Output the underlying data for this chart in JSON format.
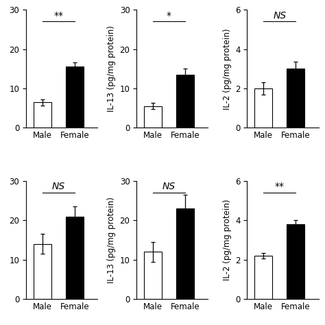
{
  "rows": [
    {
      "panels": [
        {
          "ylabel": "",
          "ylim": [
            0,
            30
          ],
          "yticks": [
            0,
            10,
            20,
            30
          ],
          "categories": [
            "Male",
            "Female"
          ],
          "values": [
            6.5,
            15.5
          ],
          "errors": [
            0.8,
            1.2
          ],
          "colors": [
            "white",
            "black"
          ],
          "significance": "**",
          "sig_style": "normal"
        },
        {
          "ylabel": "IL-13 (pg/mg protein)",
          "ylim": [
            0,
            30
          ],
          "yticks": [
            0,
            10,
            20,
            30
          ],
          "categories": [
            "Male",
            "Female"
          ],
          "values": [
            5.5,
            13.5
          ],
          "errors": [
            0.8,
            1.5
          ],
          "colors": [
            "white",
            "black"
          ],
          "significance": "*",
          "sig_style": "normal"
        },
        {
          "ylabel": "IL-2 (pg/mg protein)",
          "ylim": [
            0,
            6
          ],
          "yticks": [
            0,
            2,
            4,
            6
          ],
          "categories": [
            "Male",
            "Female"
          ],
          "values": [
            2.0,
            3.0
          ],
          "errors": [
            0.3,
            0.35
          ],
          "colors": [
            "white",
            "black"
          ],
          "significance": "NS",
          "sig_style": "italic"
        }
      ]
    },
    {
      "panels": [
        {
          "ylabel": "",
          "ylim": [
            0,
            30
          ],
          "yticks": [
            0,
            10,
            20,
            30
          ],
          "categories": [
            "Male",
            "Female"
          ],
          "values": [
            14.0,
            21.0
          ],
          "errors": [
            2.5,
            2.5
          ],
          "colors": [
            "white",
            "black"
          ],
          "significance": "NS",
          "sig_style": "italic"
        },
        {
          "ylabel": "IL-13 (pg/mg protein)",
          "ylim": [
            0,
            30
          ],
          "yticks": [
            0,
            10,
            20,
            30
          ],
          "categories": [
            "Male",
            "Female"
          ],
          "values": [
            12.0,
            23.0
          ],
          "errors": [
            2.5,
            3.5
          ],
          "colors": [
            "white",
            "black"
          ],
          "significance": "NS",
          "sig_style": "italic"
        },
        {
          "ylabel": "IL-2 (pg/mg protein)",
          "ylim": [
            0,
            6
          ],
          "yticks": [
            0,
            2,
            4,
            6
          ],
          "categories": [
            "Male",
            "Female"
          ],
          "values": [
            2.2,
            3.8
          ],
          "errors": [
            0.15,
            0.2
          ],
          "colors": [
            "white",
            "black"
          ],
          "significance": "**",
          "sig_style": "normal"
        }
      ]
    }
  ],
  "bar_width": 0.55,
  "edge_color": "black",
  "tick_fontsize": 8.5,
  "label_fontsize": 8.5,
  "sig_fontsize": 10,
  "background_color": "#ffffff"
}
